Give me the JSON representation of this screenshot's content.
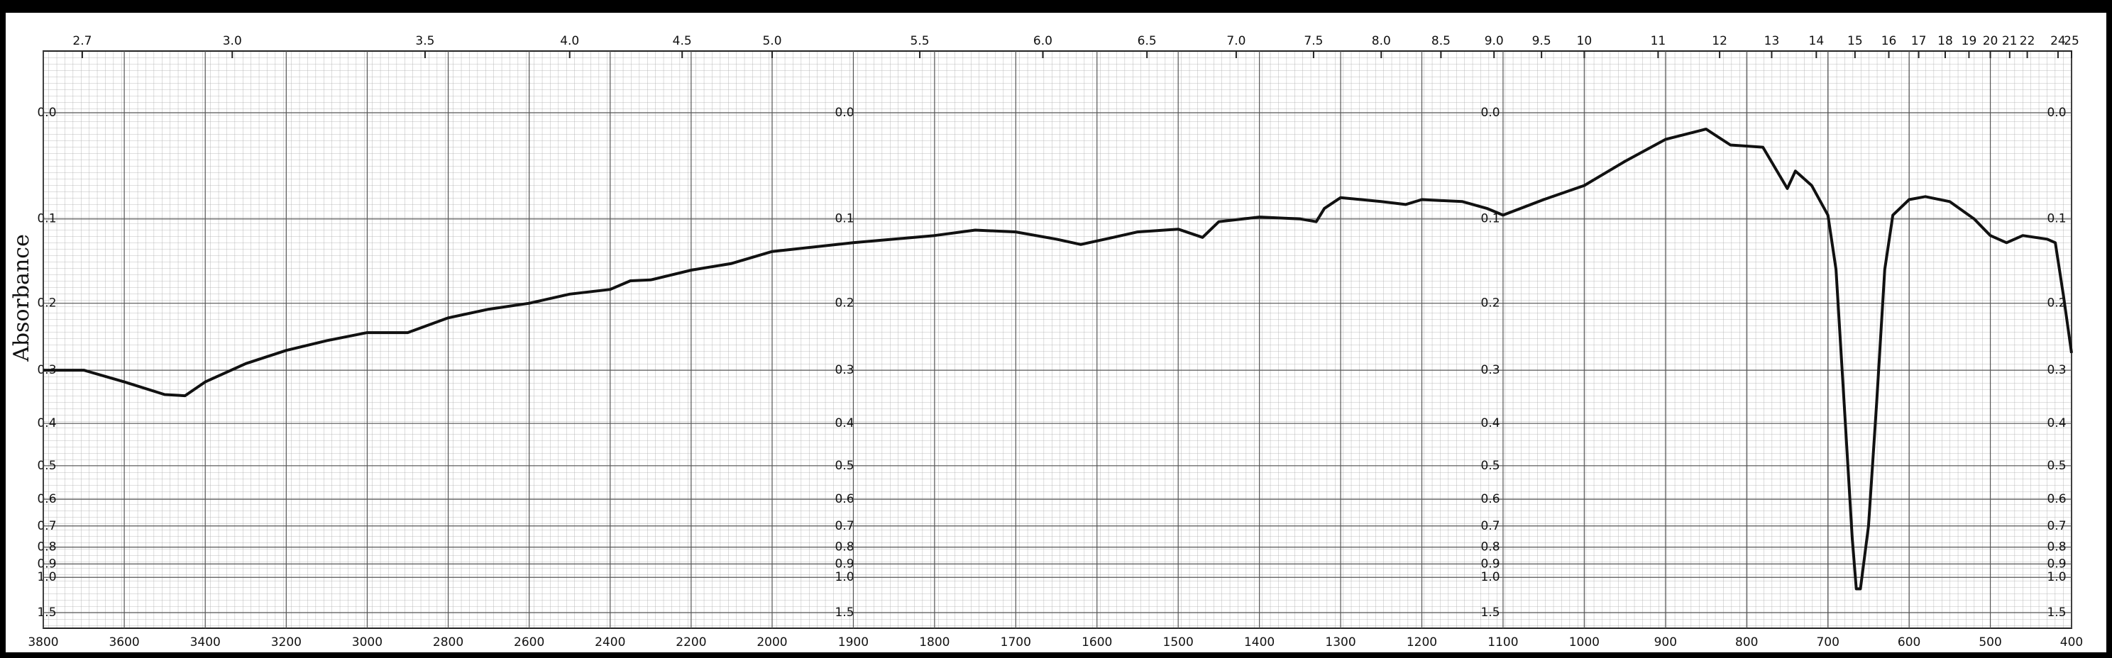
{
  "chart_data": {
    "type": "line",
    "y_label": "Absorbance",
    "x": [
      3800,
      3700,
      3600,
      3500,
      3450,
      3400,
      3300,
      3200,
      3100,
      3000,
      2900,
      2800,
      2700,
      2600,
      2500,
      2400,
      2350,
      2300,
      2200,
      2100,
      2000,
      1900,
      1800,
      1750,
      1700,
      1650,
      1620,
      1580,
      1550,
      1500,
      1470,
      1450,
      1400,
      1350,
      1330,
      1320,
      1300,
      1250,
      1220,
      1200,
      1150,
      1120,
      1100,
      1050,
      1000,
      950,
      900,
      850,
      820,
      780,
      750,
      740,
      720,
      700,
      690,
      680,
      670,
      665,
      660,
      650,
      640,
      630,
      620,
      600,
      580,
      550,
      520,
      500,
      480,
      460,
      430,
      420,
      410,
      400
    ],
    "series": [
      {
        "color": "#111111",
        "values": [
          0.3,
          0.3,
          0.32,
          0.343,
          0.345,
          0.32,
          0.289,
          0.268,
          0.253,
          0.241,
          0.241,
          0.22,
          0.208,
          0.2,
          0.188,
          0.182,
          0.171,
          0.17,
          0.158,
          0.15,
          0.136,
          0.126,
          0.118,
          0.112,
          0.114,
          0.122,
          0.128,
          0.12,
          0.114,
          0.111,
          0.12,
          0.103,
          0.098,
          0.1,
          0.103,
          0.089,
          0.078,
          0.082,
          0.085,
          0.08,
          0.082,
          0.089,
          0.096,
          0.08,
          0.066,
          0.043,
          0.023,
          0.014,
          0.028,
          0.03,
          0.069,
          0.052,
          0.066,
          0.096,
          0.157,
          0.36,
          0.757,
          1.11,
          1.11,
          0.7,
          0.36,
          0.157,
          0.096,
          0.08,
          0.077,
          0.082,
          0.1,
          0.118,
          0.126,
          0.118,
          0.122,
          0.126,
          0.19,
          0.272
        ]
      }
    ],
    "xlim": [
      3800,
      400
    ],
    "xbreak": 2000,
    "xticks": [
      3800,
      3600,
      3400,
      3200,
      3000,
      2800,
      2600,
      2400,
      2200,
      2000,
      1900,
      1800,
      1700,
      1600,
      1500,
      1400,
      1300,
      1200,
      1100,
      1000,
      900,
      800,
      700,
      600,
      500,
      400
    ],
    "x2scale": "reciprocal",
    "x2ticks": [
      2.7,
      {
        "value": 3,
        "label": "3.0"
      },
      3.5,
      {
        "value": 4,
        "label": "4.0"
      },
      4.5,
      {
        "value": 5,
        "label": "5.0"
      },
      5.5,
      {
        "value": 6,
        "label": "6.0"
      },
      6.5,
      {
        "value": 7,
        "label": "7.0"
      },
      7.5,
      {
        "value": 8,
        "label": "8.0"
      },
      8.5,
      {
        "value": 9,
        "label": "9.0"
      },
      9.5,
      10,
      11,
      12,
      13,
      14,
      15,
      16,
      17,
      18,
      19,
      20,
      21,
      22,
      24,
      25
    ],
    "ylim": [
      0,
      1.5
    ],
    "yscale": "absorbance",
    "yticks": [
      {
        "value": 0,
        "label": "0.0"
      },
      0.1,
      0.2,
      0.3,
      0.4,
      0.5,
      0.6,
      0.7,
      0.8,
      0.9,
      {
        "value": 1,
        "label": "1.0"
      },
      1.5
    ],
    "grid": true
  }
}
